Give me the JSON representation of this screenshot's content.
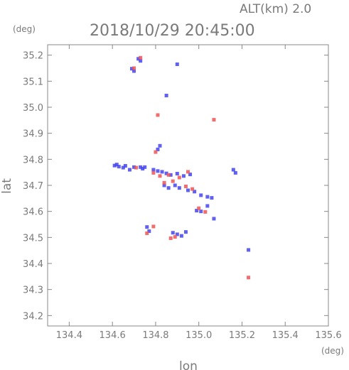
{
  "header": {
    "alt_text": "ALT(km)  2.0",
    "datetime": "2018/10/29 20:45:00",
    "y_unit": "(deg)",
    "x_unit": "(deg)"
  },
  "chart_data": {
    "type": "scatter",
    "xlabel": "lon",
    "ylabel": "lat",
    "xlim": [
      134.3,
      135.6
    ],
    "ylim": [
      34.16,
      35.24
    ],
    "xticks": [
      "134.4",
      "134.6",
      "134.8",
      "135.0",
      "135.2",
      "135.4",
      "135.6"
    ],
    "xtick_values": [
      134.4,
      134.6,
      134.8,
      135.0,
      135.2,
      135.4,
      135.6
    ],
    "yticks": [
      "34.2",
      "34.3",
      "34.4",
      "34.5",
      "34.6",
      "34.7",
      "34.8",
      "34.9",
      "35.0",
      "35.1",
      "35.2"
    ],
    "ytick_values": [
      34.2,
      34.3,
      34.4,
      34.5,
      34.6,
      34.7,
      34.8,
      34.9,
      35.0,
      35.1,
      35.2
    ],
    "colors": {
      "positive": "#ee5555",
      "negative": "#4444ee",
      "axis": "#888888"
    },
    "series": [
      {
        "color": "negative",
        "points": [
          [
            134.61,
            34.776
          ],
          [
            134.63,
            34.772
          ],
          [
            134.65,
            34.768
          ],
          [
            134.62,
            34.78
          ],
          [
            134.66,
            34.775
          ],
          [
            134.68,
            34.76
          ],
          [
            134.7,
            34.77
          ],
          [
            134.73,
            34.77
          ],
          [
            134.75,
            34.77
          ],
          [
            134.74,
            34.764
          ],
          [
            134.79,
            34.76
          ],
          [
            134.81,
            34.755
          ],
          [
            134.83,
            34.752
          ],
          [
            134.85,
            34.746
          ],
          [
            134.87,
            34.74
          ],
          [
            134.9,
            34.745
          ],
          [
            134.93,
            34.736
          ],
          [
            134.96,
            34.742
          ],
          [
            134.84,
            34.7
          ],
          [
            134.86,
            34.69
          ],
          [
            134.89,
            34.7
          ],
          [
            134.91,
            34.69
          ],
          [
            134.95,
            34.681
          ],
          [
            134.98,
            34.676
          ],
          [
            135.01,
            34.662
          ],
          [
            135.04,
            34.656
          ],
          [
            135.06,
            34.652
          ],
          [
            134.99,
            34.603
          ],
          [
            135.01,
            34.6
          ],
          [
            135.04,
            34.621
          ],
          [
            134.88,
            34.518
          ],
          [
            134.9,
            34.512
          ],
          [
            134.92,
            34.506
          ],
          [
            134.94,
            34.521
          ],
          [
            134.76,
            34.54
          ],
          [
            134.77,
            34.524
          ],
          [
            134.81,
            34.838
          ],
          [
            134.82,
            34.852
          ],
          [
            134.69,
            35.148
          ],
          [
            134.72,
            35.186
          ],
          [
            134.73,
            35.178
          ],
          [
            134.7,
            35.139
          ],
          [
            135.16,
            34.76
          ],
          [
            135.17,
            34.748
          ],
          [
            135.23,
            34.452
          ],
          [
            134.9,
            35.165
          ],
          [
            134.85,
            35.045
          ],
          [
            135.07,
            34.572
          ]
        ]
      },
      {
        "color": "positive",
        "points": [
          [
            134.71,
            34.768
          ],
          [
            134.79,
            34.748
          ],
          [
            134.82,
            34.736
          ],
          [
            134.86,
            34.74
          ],
          [
            134.91,
            34.73
          ],
          [
            134.84,
            34.71
          ],
          [
            134.88,
            34.716
          ],
          [
            134.94,
            34.696
          ],
          [
            134.97,
            34.686
          ],
          [
            135.0,
            34.612
          ],
          [
            135.03,
            34.598
          ],
          [
            134.89,
            34.502
          ],
          [
            134.87,
            34.497
          ],
          [
            134.76,
            34.516
          ],
          [
            134.79,
            34.542
          ],
          [
            134.73,
            35.19
          ],
          [
            134.7,
            35.15
          ],
          [
            134.8,
            34.828
          ],
          [
            134.81,
            34.97
          ],
          [
            135.07,
            34.952
          ],
          [
            135.23,
            34.346
          ],
          [
            134.95,
            34.752
          ]
        ]
      }
    ]
  }
}
